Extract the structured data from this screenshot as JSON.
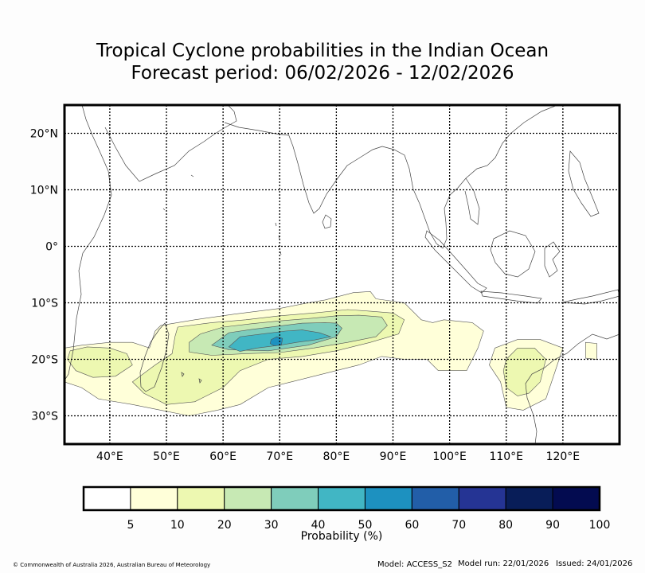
{
  "title": {
    "line1": "Tropical Cyclone probabilities in the Indian Ocean",
    "line2": "Forecast period: 06/02/2026 - 12/02/2026"
  },
  "map": {
    "lon_range": [
      32,
      130
    ],
    "lat_range": [
      -35,
      25
    ],
    "lon_ticks": [
      {
        "value": 40,
        "label": "40°E"
      },
      {
        "value": 50,
        "label": "50°E"
      },
      {
        "value": 60,
        "label": "60°E"
      },
      {
        "value": 70,
        "label": "70°E"
      },
      {
        "value": 80,
        "label": "80°E"
      },
      {
        "value": 90,
        "label": "90°E"
      },
      {
        "value": 100,
        "label": "100°E"
      },
      {
        "value": 110,
        "label": "110°E"
      },
      {
        "value": 120,
        "label": "120°E"
      }
    ],
    "lat_ticks": [
      {
        "value": 20,
        "label": "20°N"
      },
      {
        "value": 10,
        "label": "10°N"
      },
      {
        "value": 0,
        "label": "0°"
      },
      {
        "value": -10,
        "label": "10°S"
      },
      {
        "value": -20,
        "label": "20°S"
      },
      {
        "value": -30,
        "label": "30°S"
      }
    ],
    "grid": "dotted"
  },
  "colorbar": {
    "label": "Probability (%)",
    "bins": [
      {
        "from": 0,
        "to": 5,
        "color": "#ffffff"
      },
      {
        "from": 5,
        "to": 10,
        "color": "#ffffd9"
      },
      {
        "from": 10,
        "to": 20,
        "color": "#edf8b1"
      },
      {
        "from": 20,
        "to": 30,
        "color": "#c7e9b4"
      },
      {
        "from": 30,
        "to": 40,
        "color": "#7fcdbb"
      },
      {
        "from": 40,
        "to": 50,
        "color": "#41b6c4"
      },
      {
        "from": 50,
        "to": 60,
        "color": "#1d91c0"
      },
      {
        "from": 60,
        "to": 70,
        "color": "#225ea8"
      },
      {
        "from": 70,
        "to": 80,
        "color": "#253494"
      },
      {
        "from": 80,
        "to": 90,
        "color": "#081d58"
      },
      {
        "from": 90,
        "to": 100,
        "color": "#030b50"
      }
    ],
    "tick_labels": [
      "5",
      "10",
      "20",
      "30",
      "40",
      "50",
      "60",
      "70",
      "80",
      "90",
      "100"
    ]
  },
  "probability_areas": [
    {
      "level": 5,
      "name": "main-5pct",
      "color": "#ffffd9",
      "coords": [
        [
          49,
          -14
        ],
        [
          55,
          -13
        ],
        [
          62,
          -12
        ],
        [
          70,
          -11
        ],
        [
          75,
          -10
        ],
        [
          78,
          -9.5
        ],
        [
          83,
          -8.2
        ],
        [
          86,
          -8
        ],
        [
          87,
          -9.3
        ],
        [
          92,
          -10
        ],
        [
          95,
          -13
        ],
        [
          97,
          -13.5
        ],
        [
          99,
          -13
        ],
        [
          104,
          -13.5
        ],
        [
          106,
          -15
        ],
        [
          105,
          -18
        ],
        [
          104,
          -20
        ],
        [
          103,
          -22
        ],
        [
          98,
          -22
        ],
        [
          96,
          -20
        ],
        [
          92,
          -20
        ],
        [
          88,
          -19.5
        ],
        [
          84,
          -21
        ],
        [
          80,
          -22
        ],
        [
          76,
          -23
        ],
        [
          72,
          -24
        ],
        [
          68,
          -25
        ],
        [
          63,
          -28
        ],
        [
          59,
          -29
        ],
        [
          54,
          -30
        ],
        [
          49,
          -29
        ],
        [
          44,
          -28
        ],
        [
          38,
          -27
        ],
        [
          35,
          -25
        ],
        [
          32,
          -24
        ],
        [
          32,
          -18
        ],
        [
          35,
          -17.5
        ],
        [
          40,
          -17
        ],
        [
          44,
          -17
        ],
        [
          47,
          -18
        ],
        [
          48,
          -15
        ]
      ]
    },
    {
      "level": 5,
      "name": "east-5pct",
      "color": "#ffffd9",
      "coords": [
        [
          108,
          -18
        ],
        [
          112,
          -16.5
        ],
        [
          116,
          -16.5
        ],
        [
          120,
          -18
        ],
        [
          119,
          -21
        ],
        [
          118,
          -24
        ],
        [
          117,
          -27
        ],
        [
          113,
          -29
        ],
        [
          110,
          -28.5
        ],
        [
          109,
          -24
        ],
        [
          107,
          -21
        ]
      ]
    },
    {
      "level": 5,
      "name": "islet-5pct",
      "color": "#ffffd9",
      "coords": [
        [
          124,
          -17
        ],
        [
          126,
          -17.2
        ],
        [
          126,
          -20
        ],
        [
          124,
          -19.8
        ]
      ]
    },
    {
      "level": 10,
      "name": "main-10pct",
      "color": "#edf8b1",
      "coords": [
        [
          52,
          -14.3
        ],
        [
          58,
          -13.5
        ],
        [
          64,
          -13
        ],
        [
          70,
          -12.3
        ],
        [
          76,
          -11.8
        ],
        [
          82,
          -11.2
        ],
        [
          86,
          -11.5
        ],
        [
          90,
          -11.8
        ],
        [
          92,
          -13
        ],
        [
          91,
          -15.5
        ],
        [
          86,
          -17
        ],
        [
          80,
          -18.5
        ],
        [
          74,
          -19.5
        ],
        [
          68,
          -20
        ],
        [
          63,
          -22
        ],
        [
          60,
          -25
        ],
        [
          55,
          -27.5
        ],
        [
          50,
          -28
        ],
        [
          46,
          -26
        ],
        [
          44,
          -24
        ],
        [
          48,
          -21
        ],
        [
          51,
          -19
        ],
        [
          51.5,
          -16
        ]
      ]
    },
    {
      "level": 10,
      "name": "west-10pct",
      "color": "#edf8b1",
      "coords": [
        [
          33,
          -18.5
        ],
        [
          36,
          -17.8
        ],
        [
          40,
          -18
        ],
        [
          43,
          -19
        ],
        [
          44,
          -21
        ],
        [
          41,
          -23
        ],
        [
          37,
          -23.2
        ],
        [
          34,
          -22
        ],
        [
          32.5,
          -20
        ]
      ]
    },
    {
      "level": 10,
      "name": "east-10pct",
      "color": "#edf8b1",
      "coords": [
        [
          110,
          -20
        ],
        [
          112,
          -18
        ],
        [
          115,
          -18
        ],
        [
          117,
          -20
        ],
        [
          116,
          -24
        ],
        [
          114,
          -26
        ],
        [
          112,
          -26.5
        ],
        [
          110,
          -25
        ],
        [
          109.5,
          -22
        ]
      ]
    },
    {
      "level": 20,
      "name": "main-20pct",
      "color": "#c7e9b4",
      "coords": [
        [
          54,
          -17
        ],
        [
          56,
          -15.5
        ],
        [
          60,
          -14.3
        ],
        [
          65,
          -13.7
        ],
        [
          70,
          -13.2
        ],
        [
          76,
          -12.7
        ],
        [
          80,
          -12.3
        ],
        [
          84,
          -12.2
        ],
        [
          88,
          -12.5
        ],
        [
          89,
          -14
        ],
        [
          87,
          -16
        ],
        [
          82,
          -17
        ],
        [
          76,
          -18
        ],
        [
          70,
          -18.8
        ],
        [
          64,
          -19
        ],
        [
          58,
          -19.3
        ],
        [
          54,
          -18.7
        ]
      ]
    },
    {
      "level": 30,
      "name": "main-30pct",
      "color": "#7fcdbb",
      "coords": [
        [
          58,
          -17.5
        ],
        [
          61,
          -15.3
        ],
        [
          65,
          -14.7
        ],
        [
          70,
          -14.1
        ],
        [
          74,
          -13.6
        ],
        [
          78,
          -13.5
        ],
        [
          80,
          -13.6
        ],
        [
          81,
          -14.5
        ],
        [
          80,
          -16
        ],
        [
          75,
          -17.5
        ],
        [
          68,
          -18.5
        ],
        [
          61,
          -18.3
        ]
      ]
    },
    {
      "level": 40,
      "name": "main-40pct",
      "color": "#41b6c4",
      "coords": [
        [
          61,
          -17.8
        ],
        [
          63,
          -16
        ],
        [
          67,
          -15.5
        ],
        [
          71,
          -15
        ],
        [
          74,
          -14.8
        ],
        [
          77,
          -15.3
        ],
        [
          79,
          -16
        ],
        [
          76,
          -16.6
        ],
        [
          73,
          -17
        ],
        [
          70,
          -17.5
        ],
        [
          66,
          -18
        ],
        [
          63,
          -18.6
        ]
      ]
    },
    {
      "level": 50,
      "name": "main-50pct",
      "color": "#1d91c0",
      "coords": [
        [
          68.5,
          -16.5
        ],
        [
          69.5,
          -16
        ],
        [
          70.5,
          -16.3
        ],
        [
          70.3,
          -17.5
        ],
        [
          69,
          -17.6
        ],
        [
          68.3,
          -17.2
        ]
      ]
    }
  ],
  "footer": {
    "copyright": "© Commonwealth of Australia 2026, Australian Bureau of Meteorology",
    "model": "Model: ACCESS_S2",
    "model_run": "Model run: 22/01/2026",
    "issued": "Issued: 24/01/2026"
  }
}
